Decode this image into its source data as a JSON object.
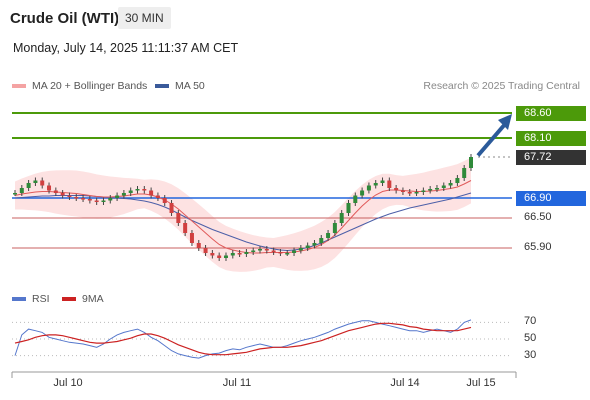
{
  "header": {
    "instrument": "Crude Oil (WTI)",
    "timeframe": "30 MIN",
    "datetime": "Monday, July 14, 2025 11:11:37 AM CET"
  },
  "legend": {
    "ma20": "MA 20 + Bollinger Bands",
    "ma50": "MA 50",
    "credit": "Research © 2025 Trading Central"
  },
  "rsi_legend": {
    "rsi": "RSI",
    "ma": "9MA"
  },
  "colors": {
    "green_level": "#4c9a0a",
    "blue_level": "#2266dd",
    "red_level": "#c86060",
    "price_tag": "#333333",
    "arrow": "#2b5a9a",
    "bollinger": "#fde2e2",
    "ma20": "#e05a5a",
    "ma50": "#4c5fa8",
    "rsi": "#5577cc",
    "rsi_ma": "#cc2222",
    "candle_up": "#2f8a3a",
    "candle_down": "#d04040"
  },
  "chart_data": {
    "type": "candlestick",
    "price_axis": {
      "min": 65.5,
      "max": 68.9
    },
    "levels": [
      {
        "label": "68.60",
        "value": 68.6,
        "style": "green-tag"
      },
      {
        "label": "68.10",
        "value": 68.1,
        "style": "green-tag"
      },
      {
        "label": "67.72",
        "value": 67.72,
        "style": "current-price"
      },
      {
        "label": "66.90",
        "value": 66.9,
        "style": "blue-tag"
      },
      {
        "label": "66.50",
        "value": 66.5,
        "style": "red-line"
      },
      {
        "label": "65.90",
        "value": 65.9,
        "style": "red-line"
      }
    ],
    "x_ticks": [
      "Jul 10",
      "Jul 11",
      "Jul 14",
      "Jul 15"
    ],
    "rsi": {
      "levels": [
        "70",
        "50",
        "30"
      ],
      "min": 15,
      "max": 85
    },
    "series_price": [
      67.0,
      67.1,
      67.2,
      67.25,
      67.15,
      67.05,
      67.0,
      66.95,
      66.92,
      66.9,
      66.88,
      66.85,
      66.82,
      66.85,
      66.9,
      66.95,
      67.0,
      67.05,
      67.08,
      67.05,
      66.95,
      66.9,
      66.8,
      66.6,
      66.4,
      66.2,
      66.0,
      65.9,
      65.8,
      65.75,
      65.7,
      65.75,
      65.8,
      65.78,
      65.82,
      65.85,
      65.88,
      65.85,
      65.82,
      65.8,
      65.8,
      65.85,
      65.9,
      65.95,
      66.0,
      66.1,
      66.2,
      66.4,
      66.6,
      66.8,
      66.95,
      67.05,
      67.15,
      67.2,
      67.25,
      67.1,
      67.05,
      67.02,
      67.0,
      67.02,
      67.05,
      67.08,
      67.1,
      67.15,
      67.2,
      67.3,
      67.5,
      67.72
    ],
    "series_ma20": [
      66.95,
      66.98,
      67.0,
      67.02,
      67.03,
      67.03,
      67.02,
      67.01,
      67.0,
      66.99,
      66.97,
      66.95,
      66.93,
      66.92,
      66.92,
      66.93,
      66.94,
      66.96,
      66.98,
      66.98,
      66.96,
      66.92,
      66.86,
      66.78,
      66.68,
      66.56,
      66.44,
      66.32,
      66.2,
      66.08,
      65.97,
      65.9,
      65.86,
      65.83,
      65.81,
      65.8,
      65.8,
      65.81,
      65.81,
      65.81,
      65.81,
      65.82,
      65.84,
      65.87,
      65.91,
      65.97,
      66.05,
      66.16,
      66.3,
      66.45,
      66.6,
      66.74,
      66.86,
      66.96,
      67.03,
      67.06,
      67.06,
      67.05,
      67.04,
      67.03,
      67.03,
      67.04,
      67.05,
      67.07,
      67.09,
      67.12,
      67.18,
      67.25
    ],
    "series_ma50": [
      66.9,
      66.91,
      66.92,
      66.93,
      66.94,
      66.94,
      66.95,
      66.95,
      66.95,
      66.95,
      66.95,
      66.94,
      66.93,
      66.92,
      66.91,
      66.9,
      66.89,
      66.88,
      66.86,
      66.84,
      66.81,
      66.77,
      66.72,
      66.66,
      66.59,
      66.52,
      66.45,
      66.39,
      66.33,
      66.27,
      66.22,
      66.17,
      66.12,
      66.07,
      66.02,
      65.98,
      65.94,
      65.91,
      65.88,
      65.86,
      65.85,
      65.86,
      65.88,
      65.91,
      65.95,
      66.0,
      66.06,
      66.12,
      66.18,
      66.24,
      66.3,
      66.36,
      66.42,
      66.48,
      66.53,
      66.58,
      66.62,
      66.66,
      66.7,
      66.73,
      66.76,
      66.79,
      66.82,
      66.85,
      66.88,
      66.92,
      66.96,
      67.0
    ],
    "series_rsi": [
      30,
      55,
      62,
      60,
      58,
      52,
      50,
      48,
      46,
      45,
      44,
      42,
      40,
      44,
      50,
      55,
      58,
      60,
      62,
      58,
      52,
      48,
      42,
      36,
      32,
      30,
      28,
      27,
      30,
      32,
      33,
      36,
      38,
      37,
      40,
      42,
      44,
      42,
      40,
      40,
      42,
      45,
      48,
      50,
      52,
      55,
      58,
      62,
      65,
      68,
      70,
      72,
      72,
      70,
      68,
      66,
      64,
      62,
      60,
      60,
      58,
      60,
      62,
      60,
      58,
      62,
      70,
      73
    ],
    "series_rsi_ma": [
      45,
      47,
      49,
      52,
      54,
      55,
      55,
      54,
      52,
      50,
      48,
      46,
      45,
      45,
      46,
      47,
      49,
      51,
      54,
      56,
      56,
      54,
      51,
      47,
      43,
      40,
      37,
      34,
      32,
      31,
      31,
      31,
      32,
      33,
      34,
      36,
      38,
      39,
      40,
      40,
      40,
      41,
      42,
      44,
      46,
      48,
      51,
      54,
      57,
      60,
      62,
      64,
      66,
      68,
      69,
      69,
      68,
      67,
      65,
      64,
      62,
      61,
      60,
      60,
      60,
      60,
      62,
      64
    ]
  }
}
